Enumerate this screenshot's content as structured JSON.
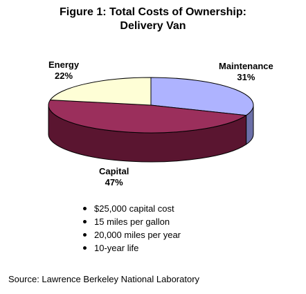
{
  "chart_data": {
    "type": "pie",
    "title": [
      "Figure 1: Total Costs of Ownership:",
      "Delivery Van"
    ],
    "slices": [
      {
        "name": "Maintenance",
        "value": 31,
        "label": "31%",
        "color": "#aeb3ff",
        "side_color": "#6b6fa8"
      },
      {
        "name": "Capital",
        "value": 47,
        "label": "47%",
        "color": "#9b2f5c",
        "side_color": "#5a1530"
      },
      {
        "name": "Energy",
        "value": 22,
        "label": "22%",
        "color": "#fefed6",
        "side_color": "#c9c9a2"
      }
    ],
    "three_d": true
  },
  "notes": [
    "$25,000 capital cost",
    "15 miles per gallon",
    "20,000 miles per year",
    "10-year life"
  ],
  "source": "Source:  Lawrence Berkeley National Laboratory"
}
